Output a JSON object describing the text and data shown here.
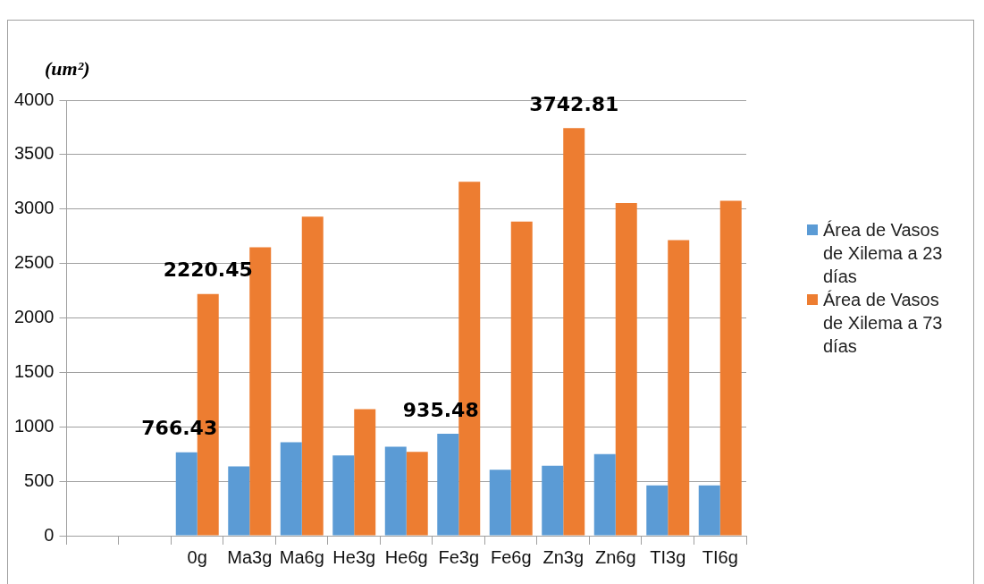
{
  "chart_data": {
    "type": "bar",
    "ylabel": "(um²)",
    "categories": [
      null,
      null,
      "0g",
      "Ma3g",
      "Ma6g",
      "He3g",
      "He6g",
      "Fe3g",
      "Fe6g",
      "Zn3g",
      "Zn6g",
      "TI3g",
      "TI6g"
    ],
    "series": [
      {
        "name": "Área de Vasos de Xilema a 23 días",
        "color": "#5b9bd5",
        "values": [
          null,
          null,
          766.43,
          637,
          858,
          738,
          817,
          935.48,
          605,
          642,
          750,
          462,
          462
        ],
        "value_labels": [
          null,
          null,
          "766.43",
          null,
          null,
          null,
          null,
          "935.48",
          null,
          null,
          null,
          null,
          null
        ]
      },
      {
        "name": "Área de Vasos de Xilema a 73 días",
        "color": "#ed7d31",
        "values": [
          null,
          null,
          2220.45,
          2648,
          2930,
          1163,
          770,
          3250,
          2884,
          3742.81,
          3055,
          2715,
          3076
        ],
        "value_labels": [
          null,
          null,
          "2220.45",
          null,
          null,
          null,
          null,
          null,
          null,
          "3742.81",
          null,
          null,
          null
        ]
      }
    ],
    "ylim": [
      0,
      4000
    ],
    "yticks": [
      0,
      500,
      1000,
      1500,
      2000,
      2500,
      3000,
      3500,
      4000
    ],
    "grid": "y",
    "legend": "right"
  }
}
